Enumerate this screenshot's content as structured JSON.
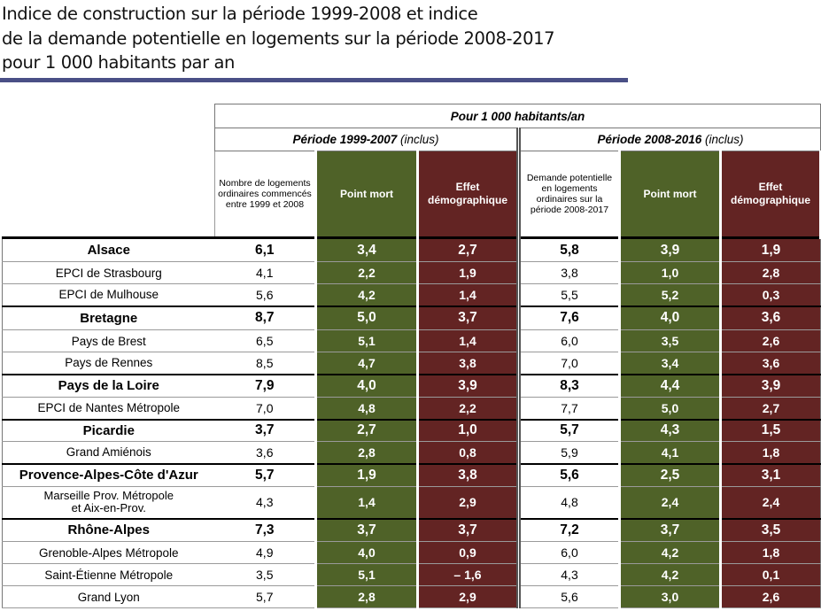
{
  "title": {
    "line1": "Indice de construction sur la période 1999-2008 et indice",
    "line2": "de la demande potentielle en logements sur la période 2008-2017",
    "line3": "pour 1 000 habitants par an"
  },
  "header": {
    "top": "Pour 1 000 habitants/an",
    "period1_bold": "Période 1999-2007",
    "period1_rest": " (inclus)",
    "period2_bold": "Période 2008-2016",
    "period2_rest": " (inclus)",
    "col1": "Nombre de logements ordinaires commencés entre 1999 et 2008",
    "col2": "Point mort",
    "col3": "Effet démographique",
    "col4": "Demande potentielle en logements ordinaires sur la période 2008-2017",
    "col5": "Point mort",
    "col6": "Effet démographique"
  },
  "colors": {
    "green": "#4f6228",
    "red": "#632423",
    "rule": "#4a4f86"
  },
  "rows": [
    {
      "name": "Alsace",
      "region": true,
      "v": [
        "6,1",
        "3,4",
        "2,7",
        "5,8",
        "3,9",
        "1,9"
      ]
    },
    {
      "name": "EPCI de Strasbourg",
      "region": false,
      "v": [
        "4,1",
        "2,2",
        "1,9",
        "3,8",
        "1,0",
        "2,8"
      ]
    },
    {
      "name": "EPCI de Mulhouse",
      "region": false,
      "v": [
        "5,6",
        "4,2",
        "1,4",
        "5,5",
        "5,2",
        "0,3"
      ]
    },
    {
      "name": "Bretagne",
      "region": true,
      "v": [
        "8,7",
        "5,0",
        "3,7",
        "7,6",
        "4,0",
        "3,6"
      ]
    },
    {
      "name": "Pays de Brest",
      "region": false,
      "v": [
        "6,5",
        "5,1",
        "1,4",
        "6,0",
        "3,5",
        "2,6"
      ]
    },
    {
      "name": "Pays de Rennes",
      "region": false,
      "v": [
        "8,5",
        "4,7",
        "3,8",
        "7,0",
        "3,4",
        "3,6"
      ]
    },
    {
      "name": "Pays de la Loire",
      "region": true,
      "v": [
        "7,9",
        "4,0",
        "3,9",
        "8,3",
        "4,4",
        "3,9"
      ]
    },
    {
      "name": "EPCI de Nantes Métropole",
      "region": false,
      "v": [
        "7,0",
        "4,8",
        "2,2",
        "7,7",
        "5,0",
        "2,7"
      ]
    },
    {
      "name": "Picardie",
      "region": true,
      "v": [
        "3,7",
        "2,7",
        "1,0",
        "5,7",
        "4,3",
        "1,5"
      ]
    },
    {
      "name": "Grand Amiénois",
      "region": false,
      "v": [
        "3,6",
        "2,8",
        "0,8",
        "5,9",
        "4,1",
        "1,8"
      ]
    },
    {
      "name": "Provence-Alpes-Côte d'Azur",
      "region": true,
      "v": [
        "5,7",
        "1,9",
        "3,8",
        "5,6",
        "2,5",
        "3,1"
      ]
    },
    {
      "name": "Marseille Prov. Métropole",
      "name2": "et Aix-en-Prov.",
      "region": false,
      "v": [
        "4,3",
        "1,4",
        "2,9",
        "4,8",
        "2,4",
        "2,4"
      ]
    },
    {
      "name": "Rhône-Alpes",
      "region": true,
      "v": [
        "7,3",
        "3,7",
        "3,7",
        "7,2",
        "3,7",
        "3,5"
      ]
    },
    {
      "name": "Grenoble-Alpes Métropole",
      "region": false,
      "v": [
        "4,9",
        "4,0",
        "0,9",
        "6,0",
        "4,2",
        "1,8"
      ]
    },
    {
      "name": "Saint-Étienne Métropole",
      "region": false,
      "v": [
        "3,5",
        "5,1",
        "– 1,6",
        "4,3",
        "4,2",
        "0,1"
      ]
    },
    {
      "name": "Grand Lyon",
      "region": false,
      "v": [
        "5,7",
        "2,8",
        "2,9",
        "5,6",
        "3,0",
        "2,6"
      ]
    }
  ]
}
